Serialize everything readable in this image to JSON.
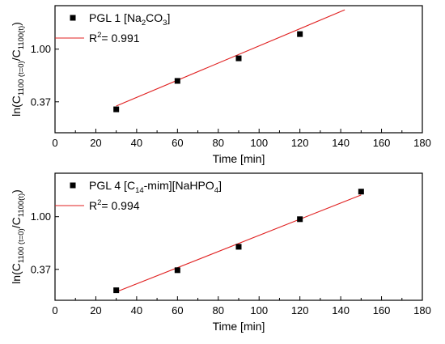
{
  "chart_data": [
    {
      "type": "scatter",
      "xlabel": "Time [min]",
      "ylabel": "ln(C1100 (t=0)/C1100(t))",
      "ylabel_parts": {
        "main": "ln(C",
        "sub1": "1100 (t=0)",
        "mid": "/C",
        "sub2": "1100(t)",
        "end": ")"
      },
      "xlim": [
        0,
        180
      ],
      "ylim": [
        0.0,
        1.52
      ],
      "x_ticks": [
        0,
        20,
        40,
        60,
        80,
        100,
        120,
        140,
        160,
        180
      ],
      "y_ticks": [
        0.37,
        1.0
      ],
      "y_tick_labels": [
        "0.37",
        "1.00"
      ],
      "grid": false,
      "legend_position": "top-left",
      "series": [
        {
          "name": "PGL 1 [Na2CO3]",
          "name_parts": {
            "main": "PGL 1 [Na",
            "sub1": "2",
            "mid": "CO",
            "sub2": "3",
            "end": "]"
          },
          "marker": "square",
          "color": "#000000",
          "x": [
            30,
            60,
            90,
            120
          ],
          "y": [
            0.28,
            0.62,
            0.89,
            1.18
          ]
        }
      ],
      "fit": {
        "name": "R2= 0.991",
        "name_parts": {
          "main": "R",
          "sup": "2",
          "end": "= 0.991"
        },
        "color": "#e02020",
        "x": [
          30,
          142
        ],
        "y": [
          0.32,
          1.47
        ]
      }
    },
    {
      "type": "scatter",
      "xlabel": "Time [min]",
      "ylabel": "ln(C1100 (t=0)/C1100(t))",
      "ylabel_parts": {
        "main": "ln(C",
        "sub1": "1100 (t=0)",
        "mid": "/C",
        "sub2": "1100(t)",
        "end": ")"
      },
      "xlim": [
        0,
        180
      ],
      "ylim": [
        0.0,
        1.52
      ],
      "x_ticks": [
        0,
        20,
        40,
        60,
        80,
        100,
        120,
        140,
        160,
        180
      ],
      "y_ticks": [
        0.37,
        1.0
      ],
      "y_tick_labels": [
        "0.37",
        "1.00"
      ],
      "grid": false,
      "legend_position": "top-left",
      "series": [
        {
          "name": "PGL 4 [C14-mim][NaHPO4]",
          "name_parts": {
            "main": "PGL 4 [C",
            "sub1": "14",
            "mid": "-mim][NaHPO",
            "sub2": "4",
            "end": "]"
          },
          "marker": "square",
          "color": "#000000",
          "x": [
            30,
            60,
            90,
            120,
            150
          ],
          "y": [
            0.12,
            0.36,
            0.64,
            0.97,
            1.3
          ]
        }
      ],
      "fit": {
        "name": "R2= 0.994",
        "name_parts": {
          "main": "R",
          "sup": "2",
          "end": "= 0.994"
        },
        "color": "#e02020",
        "x": [
          30,
          150
        ],
        "y": [
          0.1,
          1.26
        ]
      }
    }
  ]
}
